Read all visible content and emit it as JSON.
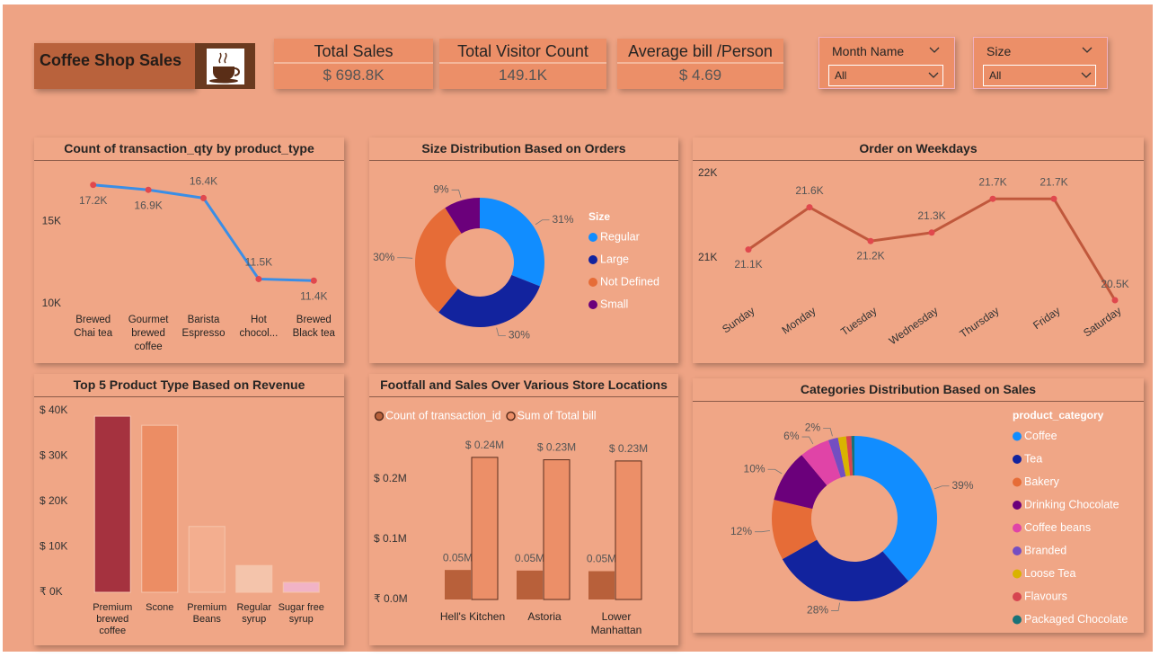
{
  "header": {
    "title": "Coffee Shop Sales"
  },
  "kpis": [
    {
      "label": "Total Sales",
      "value": "$ 698.8K"
    },
    {
      "label": "Total Visitor Count",
      "value": "149.1K"
    },
    {
      "label": "Average bill /Person",
      "value": "$ 4.69"
    }
  ],
  "filters": [
    {
      "label": "Month Name",
      "value": "All"
    },
    {
      "label": "Size",
      "value": "All"
    }
  ],
  "chart_data": [
    {
      "type": "line",
      "title": "Count of transaction_qty by product_type",
      "categories": [
        "Brewed Chai tea",
        "Gourmet brewed coffee",
        "Barista Espresso",
        "Hot chocol...",
        "Brewed Black tea"
      ],
      "values": [
        17200,
        16900,
        16400,
        11500,
        11400
      ],
      "value_labels": [
        "17.2K",
        "16.9K",
        "16.4K",
        "11.5K",
        "11.4K"
      ],
      "color": "#3a8ee6",
      "marker_color": "#e0484d",
      "ylim": [
        10000,
        18000
      ],
      "yticks": [
        {
          "value": 10000,
          "label": "10K"
        },
        {
          "value": 15000,
          "label": "15K"
        }
      ]
    },
    {
      "type": "donut",
      "title": "Size Distribution Based on Orders",
      "legend_title": "Size",
      "categories": [
        "Regular",
        "Large",
        "Not Defined",
        "Small"
      ],
      "values": [
        31,
        30,
        30,
        9
      ],
      "value_labels": [
        "31%",
        "30%",
        "30%",
        "9%"
      ],
      "colors": [
        "#118dff",
        "#12239e",
        "#e66c37",
        "#6b007b"
      ]
    },
    {
      "type": "line",
      "title": "Order on Weekdays",
      "categories": [
        "Sunday",
        "Monday",
        "Tuesday",
        "Wednesday",
        "Thursday",
        "Friday",
        "Saturday"
      ],
      "values": [
        21100,
        21600,
        21200,
        21300,
        21700,
        21700,
        20500
      ],
      "value_labels": [
        "21.1K",
        "21.6K",
        "21.2K",
        "21.3K",
        "21.7K",
        "21.7K",
        "20.5K"
      ],
      "color": "#c0583c",
      "marker_color": "#e0484d",
      "ylim": [
        20400,
        22000
      ],
      "yticks": [
        {
          "value": 21000,
          "label": "21K"
        },
        {
          "value": 22000,
          "label": "22K"
        }
      ]
    },
    {
      "type": "bar",
      "title": "Top 5 Product Type Based on Revenue",
      "categories": [
        "Premium brewed coffee",
        "Scone",
        "Premium Beans",
        "Regular syrup",
        "Sugar free syrup"
      ],
      "values": [
        38800,
        36800,
        14500,
        5900,
        2200
      ],
      "colors": [
        "#a5323f",
        "#ec8d64",
        "#f3ae8f",
        "#f4c4ab",
        "#f1b3c6"
      ],
      "ylim": [
        0,
        40000
      ],
      "yticks": [
        {
          "value": 0,
          "label": "₹ 0K"
        },
        {
          "value": 10000,
          "label": "$ 10K"
        },
        {
          "value": 20000,
          "label": "$ 20K"
        },
        {
          "value": 30000,
          "label": "$ 30K"
        },
        {
          "value": 40000,
          "label": "$ 40K"
        }
      ]
    },
    {
      "type": "grouped_bar",
      "title": "Footfall and Sales Over Various Store Locations",
      "categories": [
        "Hell's Kitchen",
        "Astoria",
        "Lower Manhattan"
      ],
      "series": [
        {
          "name": "Count of transaction_id",
          "color": "#b8603a",
          "values": [
            49000,
            48000,
            47000
          ],
          "value_labels": [
            "0.05M",
            "0.05M",
            "0.05M"
          ]
        },
        {
          "name": "Sum of Total bill",
          "color": "#ec8f68",
          "values": [
            236000,
            232000,
            230000
          ],
          "value_labels": [
            "$ 0.24M",
            "$ 0.23M",
            "$ 0.23M"
          ]
        }
      ],
      "ylim": [
        0,
        260000
      ],
      "yticks": [
        {
          "value": 0,
          "label": "₹ 0.0M"
        },
        {
          "value": 100000,
          "label": "$ 0.1M"
        },
        {
          "value": 200000,
          "label": "$ 0.2M"
        }
      ]
    },
    {
      "type": "donut",
      "title": "Categories Distribution Based on Sales",
      "legend_title": "product_category",
      "categories": [
        "Coffee",
        "Tea",
        "Bakery",
        "Drinking Chocolate",
        "Coffee beans",
        "Branded",
        "Loose Tea",
        "Flavours",
        "Packaged Chocolate"
      ],
      "values": [
        38.6,
        28.1,
        11.8,
        10.3,
        5.9,
        1.9,
        1.6,
        1.0,
        0.6
      ],
      "value_labels": [
        "39%",
        "28%",
        "12%",
        "10%",
        "6%",
        "2%",
        null,
        null,
        null
      ],
      "colors": [
        "#118dff",
        "#12239e",
        "#e66c37",
        "#6b007b",
        "#e044a7",
        "#744ec2",
        "#d9b300",
        "#d64550",
        "#197278"
      ]
    }
  ]
}
